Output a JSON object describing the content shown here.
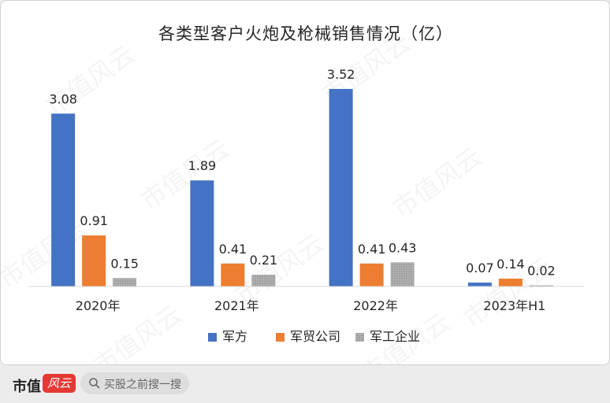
{
  "chart_data": {
    "type": "bar",
    "title": "各类型客户火炮及枪械销售情况（亿）",
    "categories": [
      "2020年",
      "2021年",
      "2022年",
      "2023年H1"
    ],
    "series": [
      {
        "name": "军方",
        "values": [
          3.08,
          1.89,
          3.52,
          0.07
        ],
        "color": "#4472c4"
      },
      {
        "name": "军贸公司",
        "values": [
          0.91,
          0.41,
          0.41,
          0.14
        ],
        "color": "#ed7d31"
      },
      {
        "name": "军工企业",
        "values": [
          0.15,
          0.21,
          0.43,
          0.02
        ],
        "color": "#a5a5a5"
      }
    ],
    "ylim": [
      0,
      3.8
    ],
    "grid": false,
    "legend_position": "bottom"
  },
  "watermark": "市值风云",
  "footer": {
    "brand": "市值",
    "brand_badge": "风云",
    "search_placeholder": "买股之前搜一搜",
    "search_icon": "search-icon"
  }
}
